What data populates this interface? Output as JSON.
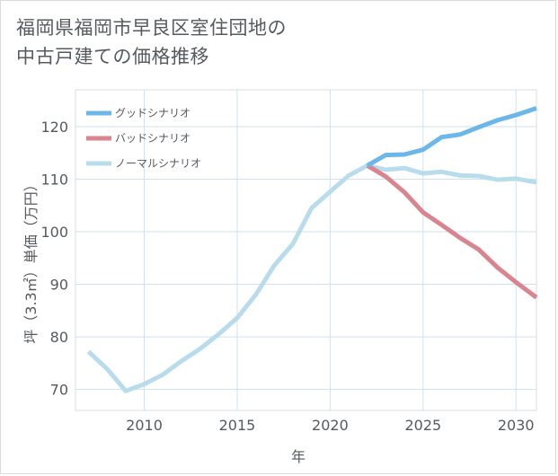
{
  "title_lines": [
    "福岡県福岡市早良区室住団地の",
    "中古戸建ての価格推移"
  ],
  "chart_data": {
    "type": "line",
    "xlabel": "年",
    "ylabel": "坪（3.3㎡）単価（万円）",
    "xlim": [
      2006.3,
      2031.1
    ],
    "ylim": [
      66,
      127
    ],
    "xticks": [
      2010,
      2015,
      2020,
      2025,
      2030
    ],
    "yticks": [
      70,
      80,
      90,
      100,
      110,
      120
    ],
    "grid": true,
    "legend_position": "top-left",
    "series": [
      {
        "name": "グッドシナリオ",
        "color": "#6cb7ea",
        "x": [
          2022,
          2023,
          2024,
          2025,
          2026,
          2027,
          2028,
          2029,
          2030,
          2031.1
        ],
        "y": [
          112.6,
          114.6,
          114.7,
          115.6,
          118.0,
          118.5,
          119.9,
          121.2,
          122.2,
          123.5
        ]
      },
      {
        "name": "バッドシナリオ",
        "color": "#d9848f",
        "x": [
          2022,
          2023,
          2024,
          2025,
          2026,
          2027,
          2028,
          2029,
          2030,
          2031.1
        ],
        "y": [
          112.6,
          110.5,
          107.5,
          103.7,
          101.3,
          98.8,
          96.6,
          93.2,
          90.4,
          87.5
        ]
      },
      {
        "name": "ノーマルシナリオ",
        "color": "#b9dced",
        "x": [
          2007,
          2008,
          2009,
          2010,
          2011,
          2012,
          2013,
          2014,
          2015,
          2016,
          2017,
          2018,
          2019,
          2020,
          2021,
          2022,
          2023,
          2024,
          2025,
          2026,
          2027,
          2028,
          2029,
          2030,
          2031.1
        ],
        "y": [
          77.2,
          73.9,
          69.7,
          71.0,
          72.8,
          75.4,
          77.7,
          80.5,
          83.6,
          88.0,
          93.6,
          97.7,
          104.5,
          107.6,
          110.7,
          112.6,
          111.8,
          112.1,
          111.1,
          111.4,
          110.7,
          110.6,
          109.9,
          110.1,
          109.4
        ]
      }
    ]
  }
}
